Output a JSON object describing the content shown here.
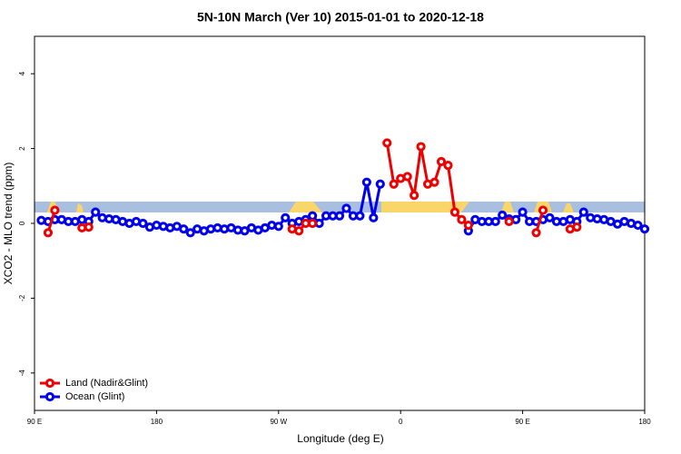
{
  "chart_data": {
    "type": "line",
    "title": "5N-10N March (Ver 10)   2015-01-01 to 2020-12-18",
    "x_label": "Longitude (deg E)",
    "y_label": "XCO2 - MLO trend (ppm)",
    "xlim": [
      90,
      540
    ],
    "ylim": [
      -5,
      5
    ],
    "xticks": [
      {
        "value": 90,
        "label": "90 E"
      },
      180,
      {
        "value": 270,
        "label": "90 W"
      },
      {
        "value": 360,
        "label": "0"
      },
      {
        "value": 450,
        "label": "90 E"
      },
      {
        "value": 540,
        "label": "180"
      }
    ],
    "yticks": [
      -4,
      -2,
      0,
      2,
      4
    ],
    "legend": "bottom-left",
    "x": [
      95,
      100,
      105,
      110,
      115,
      120,
      125,
      130,
      135,
      140,
      145,
      150,
      155,
      160,
      165,
      170,
      175,
      180,
      185,
      190,
      195,
      200,
      205,
      210,
      215,
      220,
      225,
      230,
      235,
      240,
      245,
      250,
      255,
      260,
      265,
      270,
      275,
      280,
      285,
      290,
      295,
      300,
      305,
      310,
      315,
      320,
      325,
      330,
      335,
      340,
      345,
      350,
      355,
      360,
      365,
      370,
      375,
      380,
      385,
      390,
      395,
      400,
      405,
      410,
      415,
      420,
      425,
      430,
      435,
      440,
      445,
      450,
      455,
      460,
      465,
      470,
      475,
      480,
      485,
      490,
      495,
      500,
      505,
      510,
      515,
      520,
      525,
      530,
      535,
      540
    ],
    "series": [
      {
        "name": "Ocean (Glint)",
        "color": "#0000ee",
        "values": [
          0.08,
          0.05,
          0.1,
          0.1,
          0.05,
          0.05,
          0.1,
          0.05,
          0.3,
          0.15,
          0.12,
          0.1,
          0.05,
          0.0,
          0.05,
          0.0,
          -0.1,
          -0.05,
          -0.08,
          -0.12,
          -0.08,
          -0.15,
          -0.25,
          -0.15,
          -0.2,
          -0.15,
          -0.12,
          -0.15,
          -0.12,
          -0.18,
          -0.2,
          -0.12,
          -0.18,
          -0.12,
          -0.05,
          -0.08,
          0.15,
          0.0,
          0.05,
          0.1,
          0.2,
          0.0,
          0.2,
          0.2,
          0.2,
          0.4,
          0.2,
          0.2,
          1.1,
          0.15,
          1.05,
          null,
          null,
          null,
          null,
          null,
          null,
          null,
          null,
          null,
          null,
          null,
          null,
          -0.2,
          0.1,
          0.05,
          0.05,
          0.05,
          0.22,
          0.12,
          0.1,
          0.3,
          0.05,
          0.05,
          0.1,
          0.15,
          0.05,
          0.05,
          0.1,
          0.05,
          0.3,
          0.15,
          0.12,
          0.1,
          0.05,
          -0.02,
          0.05,
          0.0,
          -0.05,
          -0.15
        ]
      },
      {
        "name": "Land (Nadir&Glint)",
        "color": "#ee0000",
        "values": [
          null,
          -0.25,
          0.35,
          null,
          null,
          null,
          -0.12,
          -0.1,
          null,
          null,
          null,
          null,
          null,
          null,
          null,
          null,
          null,
          null,
          null,
          null,
          null,
          null,
          null,
          null,
          null,
          null,
          null,
          null,
          null,
          null,
          null,
          null,
          null,
          null,
          null,
          null,
          null,
          -0.15,
          -0.2,
          0.0,
          0.0,
          null,
          null,
          null,
          null,
          null,
          null,
          null,
          null,
          null,
          null,
          2.15,
          1.05,
          1.2,
          1.25,
          0.75,
          2.05,
          1.05,
          1.1,
          1.65,
          1.55,
          0.3,
          0.1,
          -0.05,
          null,
          null,
          null,
          null,
          null,
          0.05,
          null,
          null,
          null,
          -0.25,
          0.35,
          null,
          null,
          null,
          -0.15,
          -0.1,
          null,
          null,
          null,
          null,
          null,
          null,
          null,
          null,
          null,
          null
        ]
      }
    ]
  }
}
